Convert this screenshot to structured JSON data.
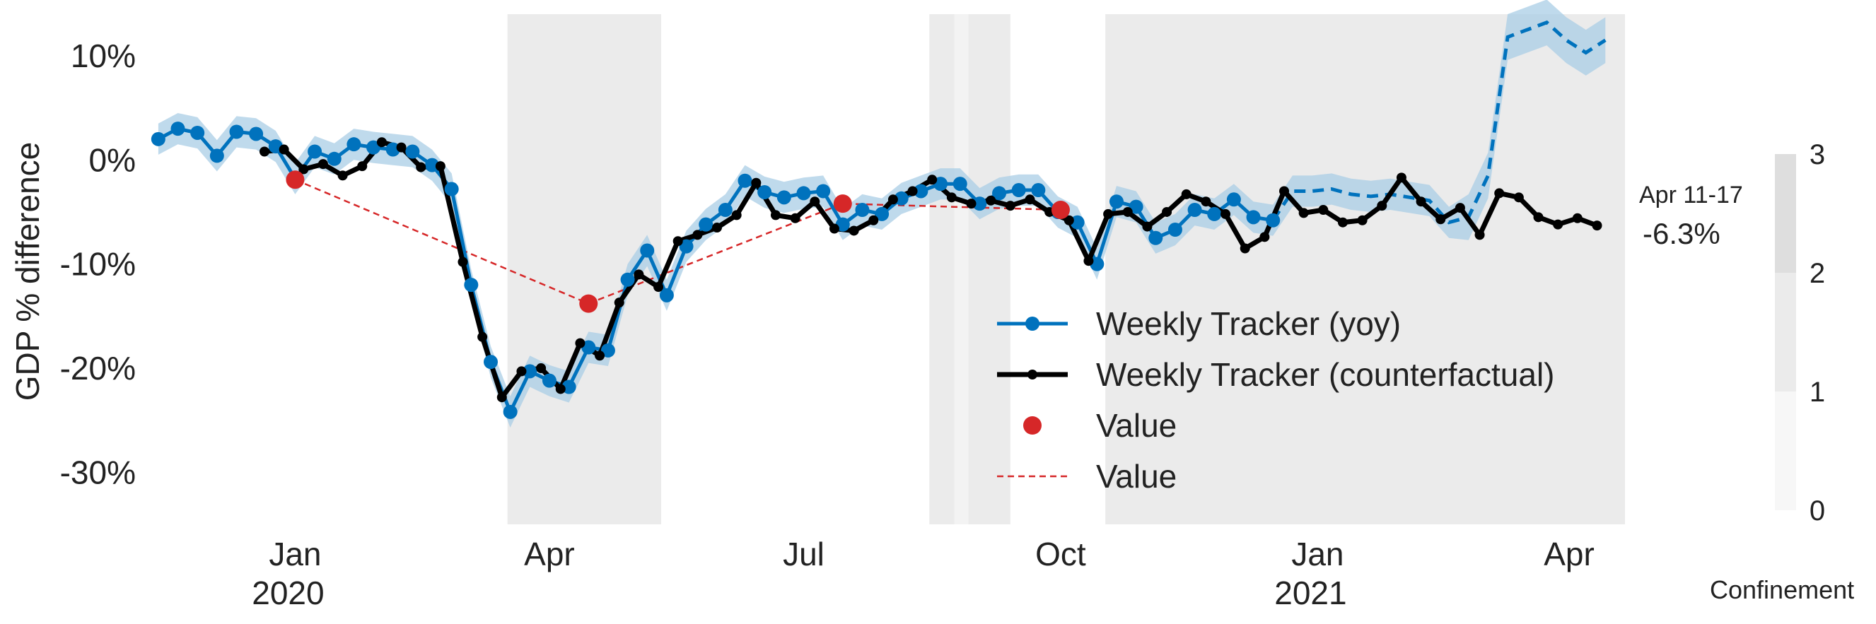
{
  "chart_data": {
    "type": "line",
    "ylabel": "GDP % difference",
    "xlabel": "",
    "ylim": [
      -35,
      14
    ],
    "xlim": [
      "2019-11-10",
      "2021-04-21"
    ],
    "y_ticks": [
      {
        "value": 10,
        "label": "10%"
      },
      {
        "value": 0,
        "label": "0%"
      },
      {
        "value": -10,
        "label": "-10%"
      },
      {
        "value": -20,
        "label": "-20%"
      },
      {
        "value": -30,
        "label": "-30%"
      }
    ],
    "x_ticks": [
      {
        "date": "2020-01-01",
        "label": "Jan",
        "year": "2020"
      },
      {
        "date": "2020-04-01",
        "label": "Apr",
        "year": ""
      },
      {
        "date": "2020-07-01",
        "label": "Jul",
        "year": ""
      },
      {
        "date": "2020-10-01",
        "label": "Oct",
        "year": ""
      },
      {
        "date": "2021-01-01",
        "label": "Jan",
        "year": "2021"
      },
      {
        "date": "2021-04-01",
        "label": "Apr",
        "year": ""
      }
    ],
    "confinement_periods": [
      {
        "start": "2020-03-17",
        "end": "2020-05-11",
        "level": 3
      },
      {
        "start": "2020-08-15",
        "end": "2020-08-24",
        "level": 2
      },
      {
        "start": "2020-08-24",
        "end": "2020-08-29",
        "level": 1
      },
      {
        "start": "2020-08-29",
        "end": "2020-09-13",
        "level": 2
      },
      {
        "start": "2020-10-17",
        "end": "2021-04-21",
        "level": 3
      }
    ],
    "series": [
      {
        "name": "Weekly Tracker (yoy)",
        "color": "#0072bd",
        "band_color": "#a9cde6",
        "points": [
          [
            "2019-11-13",
            2.0
          ],
          [
            "2019-11-20",
            3.0
          ],
          [
            "2019-11-27",
            2.6
          ],
          [
            "2019-12-04",
            0.4
          ],
          [
            "2019-12-11",
            2.7
          ],
          [
            "2019-12-18",
            2.5
          ],
          [
            "2019-12-25",
            1.3
          ],
          [
            "2020-01-01",
            -1.8
          ],
          [
            "2020-01-08",
            0.8
          ],
          [
            "2020-01-15",
            0.1
          ],
          [
            "2020-01-22",
            1.5
          ],
          [
            "2020-01-29",
            1.2
          ],
          [
            "2020-02-05",
            1.0
          ],
          [
            "2020-02-12",
            0.8
          ],
          [
            "2020-02-19",
            -0.5
          ],
          [
            "2020-02-26",
            -2.8
          ],
          [
            "2020-03-04",
            -12.0
          ],
          [
            "2020-03-11",
            -19.4
          ],
          [
            "2020-03-18",
            -24.2
          ],
          [
            "2020-03-25",
            -20.3
          ],
          [
            "2020-04-01",
            -21.2
          ],
          [
            "2020-04-08",
            -21.8
          ],
          [
            "2020-04-15",
            -18.0
          ],
          [
            "2020-04-22",
            -18.3
          ],
          [
            "2020-04-29",
            -11.5
          ],
          [
            "2020-05-06",
            -8.7
          ],
          [
            "2020-05-13",
            -13.0
          ],
          [
            "2020-05-20",
            -8.3
          ],
          [
            "2020-05-27",
            -6.2
          ],
          [
            "2020-06-03",
            -4.8
          ],
          [
            "2020-06-10",
            -2.0
          ],
          [
            "2020-06-17",
            -3.1
          ],
          [
            "2020-06-24",
            -3.6
          ],
          [
            "2020-07-01",
            -3.2
          ],
          [
            "2020-07-08",
            -3.0
          ],
          [
            "2020-07-15",
            -6.2
          ],
          [
            "2020-07-22",
            -4.8
          ],
          [
            "2020-07-29",
            -5.2
          ],
          [
            "2020-08-05",
            -3.7
          ],
          [
            "2020-08-12",
            -3.0
          ],
          [
            "2020-08-19",
            -2.3
          ],
          [
            "2020-08-26",
            -2.3
          ],
          [
            "2020-09-02",
            -4.2
          ],
          [
            "2020-09-09",
            -3.2
          ],
          [
            "2020-09-16",
            -2.9
          ],
          [
            "2020-09-23",
            -2.9
          ],
          [
            "2020-09-30",
            -5.0
          ],
          [
            "2020-10-07",
            -6.0
          ],
          [
            "2020-10-14",
            -10.0
          ],
          [
            "2020-10-21",
            -4.0
          ],
          [
            "2020-10-28",
            -4.5
          ],
          [
            "2020-11-04",
            -7.5
          ],
          [
            "2020-11-11",
            -6.7
          ],
          [
            "2020-11-18",
            -4.8
          ],
          [
            "2020-11-25",
            -5.2
          ],
          [
            "2020-12-02",
            -3.8
          ],
          [
            "2020-12-09",
            -5.5
          ],
          [
            "2020-12-16",
            -5.8
          ]
        ],
        "forecast": [
          [
            "2020-12-16",
            -5.8
          ],
          [
            "2020-12-23",
            -3.0
          ],
          [
            "2020-12-30",
            -3.0
          ],
          [
            "2021-01-06",
            -2.8
          ],
          [
            "2021-01-13",
            -3.3
          ],
          [
            "2021-01-20",
            -3.5
          ],
          [
            "2021-01-27",
            -3.3
          ],
          [
            "2021-02-03",
            -3.6
          ],
          [
            "2021-02-10",
            -3.9
          ],
          [
            "2021-02-17",
            -6.0
          ],
          [
            "2021-02-24",
            -5.5
          ],
          [
            "2021-03-03",
            -1.5
          ],
          [
            "2021-03-10",
            11.8
          ],
          [
            "2021-03-17",
            12.5
          ],
          [
            "2021-03-24",
            13.2
          ],
          [
            "2021-03-31",
            11.5
          ],
          [
            "2021-04-07",
            10.3
          ],
          [
            "2021-04-14",
            11.5
          ]
        ]
      },
      {
        "name": "Weekly Tracker (counterfactual)",
        "color": "#000000",
        "points": [
          [
            "2019-12-21",
            0.8
          ],
          [
            "2019-12-28",
            1.0
          ],
          [
            "2020-01-04",
            -0.9
          ],
          [
            "2020-01-11",
            -0.4
          ],
          [
            "2020-01-18",
            -1.5
          ],
          [
            "2020-01-25",
            -0.6
          ],
          [
            "2020-02-01",
            1.7
          ],
          [
            "2020-02-08",
            1.2
          ],
          [
            "2020-02-15",
            -0.7
          ],
          [
            "2020-02-22",
            -0.6
          ],
          [
            "2020-03-01",
            -9.8
          ],
          [
            "2020-03-08",
            -17.0
          ],
          [
            "2020-03-15",
            -22.8
          ],
          [
            "2020-03-22",
            -20.3
          ],
          [
            "2020-03-29",
            -20.0
          ],
          [
            "2020-04-05",
            -22.0
          ],
          [
            "2020-04-12",
            -17.6
          ],
          [
            "2020-04-19",
            -18.8
          ],
          [
            "2020-04-26",
            -13.7
          ],
          [
            "2020-05-03",
            -11.0
          ],
          [
            "2020-05-10",
            -12.2
          ],
          [
            "2020-05-17",
            -7.8
          ],
          [
            "2020-05-24",
            -7.2
          ],
          [
            "2020-05-31",
            -6.5
          ],
          [
            "2020-06-07",
            -5.3
          ],
          [
            "2020-06-14",
            -2.2
          ],
          [
            "2020-06-21",
            -5.3
          ],
          [
            "2020-06-28",
            -5.6
          ],
          [
            "2020-07-05",
            -4.0
          ],
          [
            "2020-07-12",
            -6.6
          ],
          [
            "2020-07-19",
            -6.8
          ],
          [
            "2020-07-26",
            -5.8
          ],
          [
            "2020-08-02",
            -3.8
          ],
          [
            "2020-08-09",
            -3.0
          ],
          [
            "2020-08-16",
            -1.9
          ],
          [
            "2020-08-23",
            -3.6
          ],
          [
            "2020-08-30",
            -4.2
          ],
          [
            "2020-09-06",
            -3.9
          ],
          [
            "2020-09-13",
            -4.4
          ],
          [
            "2020-09-20",
            -3.8
          ],
          [
            "2020-09-27",
            -5.0
          ],
          [
            "2020-10-04",
            -5.8
          ],
          [
            "2020-10-11",
            -9.7
          ],
          [
            "2020-10-18",
            -5.2
          ],
          [
            "2020-10-25",
            -5.0
          ],
          [
            "2020-11-01",
            -6.4
          ],
          [
            "2020-11-08",
            -5.0
          ],
          [
            "2020-11-15",
            -3.3
          ],
          [
            "2020-11-22",
            -4.0
          ],
          [
            "2020-11-29",
            -5.2
          ],
          [
            "2020-12-06",
            -8.5
          ],
          [
            "2020-12-13",
            -7.4
          ],
          [
            "2020-12-20",
            -3.0
          ],
          [
            "2020-12-27",
            -5.1
          ],
          [
            "2021-01-03",
            -4.8
          ],
          [
            "2021-01-10",
            -6.0
          ],
          [
            "2021-01-17",
            -5.8
          ],
          [
            "2021-01-24",
            -4.4
          ],
          [
            "2021-01-31",
            -1.7
          ],
          [
            "2021-02-07",
            -4.0
          ],
          [
            "2021-02-14",
            -5.7
          ],
          [
            "2021-02-21",
            -4.6
          ],
          [
            "2021-02-28",
            -7.2
          ],
          [
            "2021-03-07",
            -3.2
          ],
          [
            "2021-03-14",
            -3.6
          ],
          [
            "2021-03-21",
            -5.5
          ],
          [
            "2021-03-28",
            -6.2
          ],
          [
            "2021-04-04",
            -5.6
          ],
          [
            "2021-04-11",
            -6.3
          ]
        ]
      },
      {
        "name": "Value",
        "type": "scatter",
        "color": "#d62728",
        "points": [
          [
            "2020-01-01",
            -1.9
          ],
          [
            "2020-04-15",
            -13.8
          ],
          [
            "2020-07-15",
            -4.2
          ],
          [
            "2020-10-01",
            -4.8
          ]
        ]
      },
      {
        "name": "Value",
        "type": "line-dashed",
        "color": "#d62728",
        "points": [
          [
            "2020-01-01",
            -1.9
          ],
          [
            "2020-04-15",
            -13.8
          ],
          [
            "2020-07-15",
            -4.2
          ],
          [
            "2020-10-01",
            -4.8
          ]
        ]
      }
    ],
    "legend": {
      "position": "lower-center",
      "entries": [
        "Weekly Tracker (yoy)",
        "Weekly Tracker (counterfactual)",
        "Value",
        "Value"
      ]
    },
    "annotation": {
      "period": "Apr 11-17",
      "value": "-6.3%"
    },
    "colorbar": {
      "label": "Confinement",
      "ticks": [
        "0",
        "1",
        "2",
        "3"
      ],
      "levels": [
        {
          "level": 1,
          "color": "#f7f7f7"
        },
        {
          "level": 2,
          "color": "#ebebeb"
        },
        {
          "level": 3,
          "color": "#dedede"
        }
      ]
    },
    "grid": false
  }
}
